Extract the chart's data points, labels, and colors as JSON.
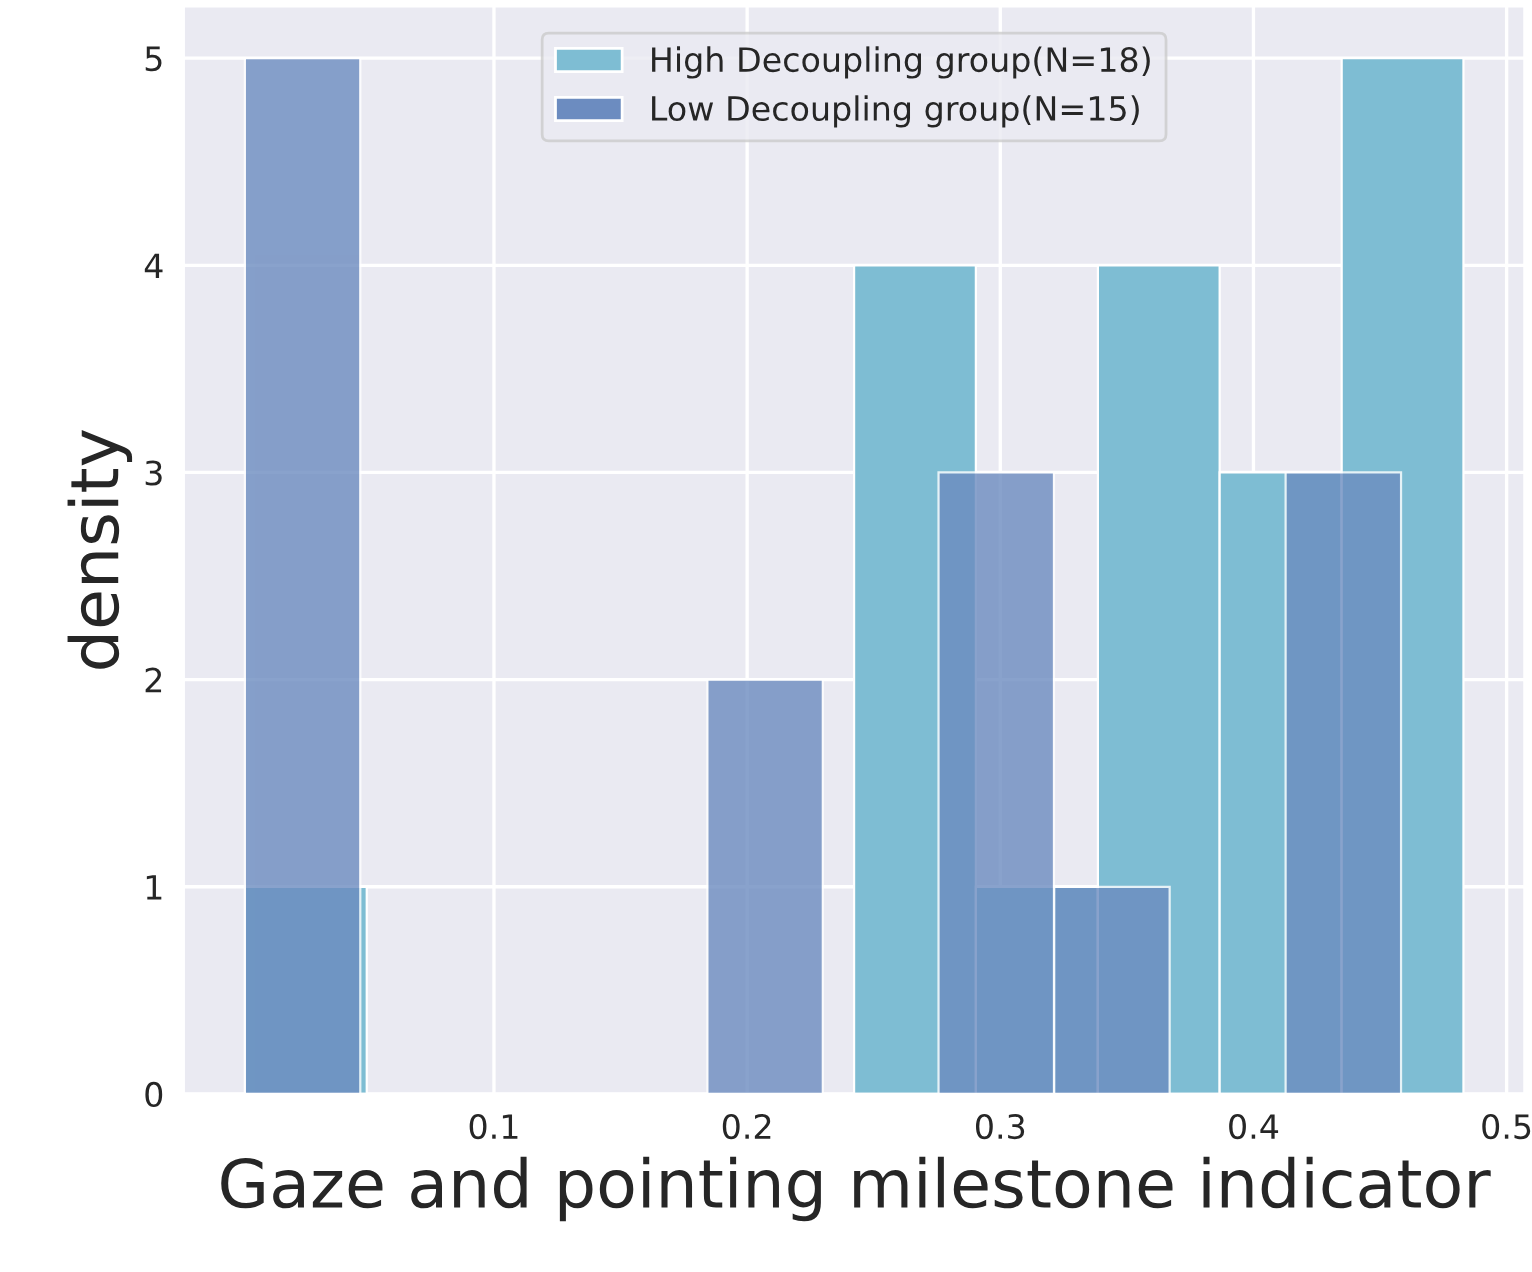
{
  "chart_data": {
    "type": "bar",
    "xlabel": "Gaze and pointing milestone indicator",
    "ylabel": "density",
    "series": [
      {
        "name": "High Decoupling group(N=18)",
        "color": "#7ebdd3",
        "x": [
          0.0257,
          0.0738,
          0.1219,
          0.17,
          0.2182,
          0.2663,
          0.3144,
          0.3626,
          0.4107,
          0.4589
        ],
        "values": [
          1,
          0,
          0,
          0,
          0,
          4,
          1,
          4,
          3,
          5
        ]
      },
      {
        "name": "Low Decoupling group(N=15)",
        "color": "#6c8cc0",
        "x": [
          0.0244,
          0.07,
          0.1157,
          0.1614,
          0.2071,
          0.2528,
          0.2984,
          0.3441,
          0.3898,
          0.4355
        ],
        "values": [
          5,
          0,
          0,
          0,
          2,
          0,
          3,
          1,
          0,
          3
        ]
      }
    ],
    "xlim": [
      -0.0225,
      0.507
    ],
    "ylim": [
      0,
      5.25
    ],
    "xticks": [
      0.1,
      0.2,
      0.3,
      0.4,
      0.5
    ],
    "yticks": [
      0,
      1,
      2,
      3,
      4,
      5
    ],
    "grid": true,
    "legend": "top"
  }
}
